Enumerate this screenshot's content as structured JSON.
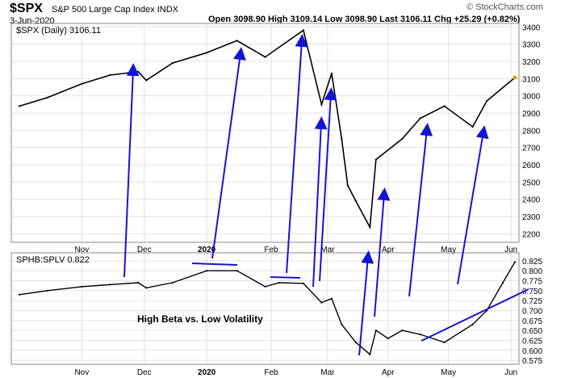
{
  "header": {
    "symbol": "$SPX",
    "name": "S&P 500 Large Cap Index",
    "exchange": "INDX",
    "date": "3-Jun-2020",
    "ohlc": "Open 3098.90  High 3109.14  Low 3098.90  Last 3106.11  Chg +25.29 (+0.82%)",
    "brand": "© StockCharts.com"
  },
  "chart_data": [
    {
      "type": "line",
      "legend": "$SPX (Daily) 3106.11",
      "ylim": [
        2150,
        3420
      ],
      "yticks": [
        2200,
        2300,
        2400,
        2500,
        2600,
        2700,
        2800,
        2900,
        3000,
        3100,
        3200,
        3300,
        3400
      ],
      "x_labels": [
        "Nov",
        "Dec",
        "2020",
        "Feb",
        "Mar",
        "Apr",
        "May",
        "Jun"
      ],
      "series": [
        {
          "name": "$SPX (Daily)",
          "x": [
            "2019-10-01",
            "2019-10-15",
            "2019-11-01",
            "2019-11-15",
            "2019-11-29",
            "2019-12-03",
            "2019-12-16",
            "2020-01-02",
            "2020-01-17",
            "2020-01-31",
            "2020-02-19",
            "2020-02-28",
            "2020-03-04",
            "2020-03-09",
            "2020-03-12",
            "2020-03-16",
            "2020-03-23",
            "2020-03-26",
            "2020-04-08",
            "2020-04-17",
            "2020-04-29",
            "2020-05-13",
            "2020-05-20",
            "2020-06-03"
          ],
          "values": [
            2940,
            2990,
            3070,
            3120,
            3140,
            3090,
            3190,
            3250,
            3320,
            3225,
            3380,
            2950,
            3130,
            2750,
            2480,
            2390,
            2237,
            2630,
            2750,
            2870,
            2940,
            2820,
            2970,
            3106
          ]
        }
      ]
    },
    {
      "type": "line",
      "legend": "SPHB:SPLV 0.822",
      "annotation": "High Beta vs. Low Volatility",
      "ylim": [
        0.565,
        0.845
      ],
      "yticks": [
        0.575,
        0.6,
        0.625,
        0.65,
        0.675,
        0.7,
        0.725,
        0.75,
        0.775,
        0.8,
        0.825
      ],
      "x_labels": [
        "Nov",
        "Dec",
        "2020",
        "Feb",
        "Mar",
        "Apr",
        "May",
        "Jun"
      ],
      "series": [
        {
          "name": "SPHB:SPLV",
          "x": [
            "2019-10-01",
            "2019-10-15",
            "2019-11-01",
            "2019-11-15",
            "2019-11-29",
            "2019-12-03",
            "2019-12-16",
            "2020-01-02",
            "2020-01-17",
            "2020-01-31",
            "2020-02-07",
            "2020-02-19",
            "2020-02-28",
            "2020-03-04",
            "2020-03-09",
            "2020-03-16",
            "2020-03-23",
            "2020-03-26",
            "2020-04-01",
            "2020-04-08",
            "2020-04-17",
            "2020-04-29",
            "2020-05-13",
            "2020-05-20",
            "2020-05-28",
            "2020-06-03"
          ],
          "values": [
            0.74,
            0.75,
            0.76,
            0.765,
            0.77,
            0.757,
            0.77,
            0.8,
            0.8,
            0.76,
            0.77,
            0.768,
            0.72,
            0.73,
            0.665,
            0.62,
            0.59,
            0.65,
            0.63,
            0.65,
            0.64,
            0.62,
            0.665,
            0.7,
            0.77,
            0.822
          ]
        }
      ]
    }
  ]
}
